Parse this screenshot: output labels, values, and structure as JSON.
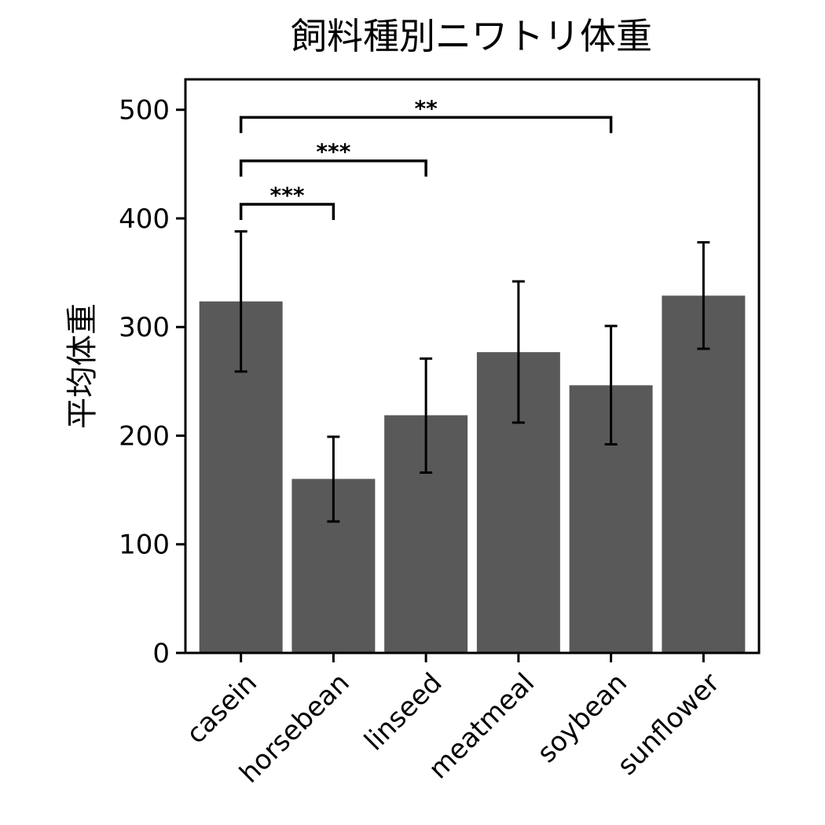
{
  "chart_data": {
    "type": "bar",
    "title": "飼料種別ニワトリ体重",
    "xlabel": "",
    "ylabel": "平均体重",
    "categories": [
      "casein",
      "horsebean",
      "linseed",
      "meatmeal",
      "soybean",
      "sunflower"
    ],
    "values": [
      323.6,
      160.2,
      218.8,
      276.9,
      246.4,
      328.9
    ],
    "error_low": [
      259,
      121,
      166,
      212,
      192,
      280
    ],
    "error_high": [
      388,
      199,
      271,
      342,
      301,
      378
    ],
    "ylim": [
      0,
      528
    ],
    "yticks": [
      0,
      100,
      200,
      300,
      400,
      500
    ],
    "bar_color": "#595959",
    "grid": false,
    "significance": [
      {
        "from": "casein",
        "to": "horsebean",
        "label": "***",
        "y": 413
      },
      {
        "from": "casein",
        "to": "linseed",
        "label": "***",
        "y": 453
      },
      {
        "from": "casein",
        "to": "soybean",
        "label": "**",
        "y": 493
      }
    ]
  }
}
